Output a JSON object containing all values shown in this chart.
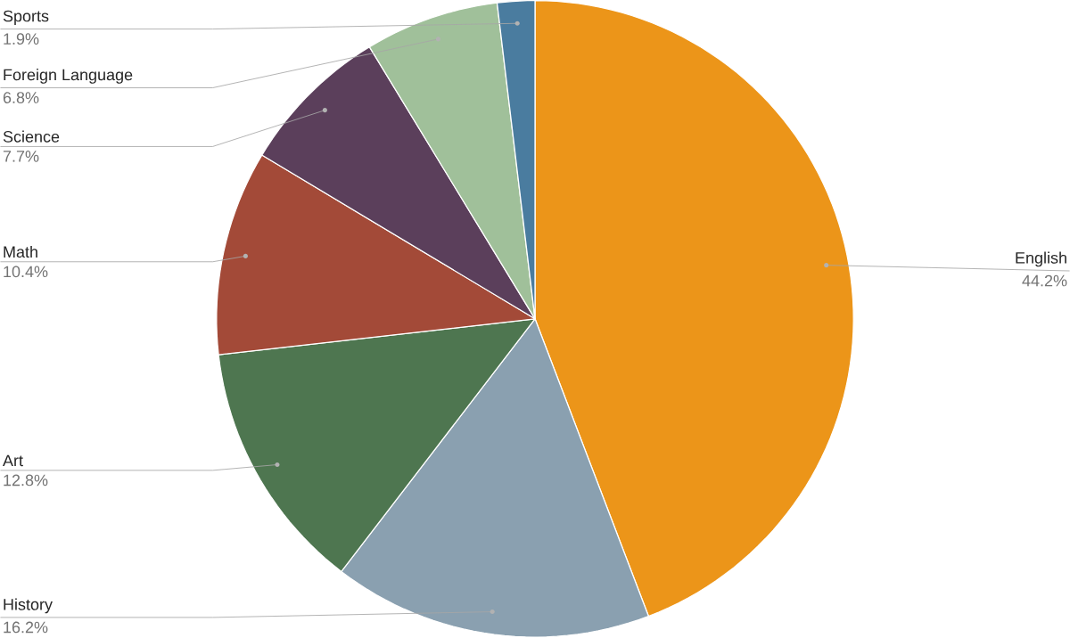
{
  "chart_data": {
    "type": "pie",
    "categories": [
      "English",
      "History",
      "Art",
      "Math",
      "Science",
      "Foreign Language",
      "Sports"
    ],
    "values": [
      44.2,
      16.2,
      12.8,
      10.4,
      7.7,
      6.8,
      1.9
    ],
    "value_labels": [
      "44.2%",
      "16.2%",
      "12.8%",
      "10.4%",
      "7.7%",
      "6.8%",
      "1.9%"
    ],
    "colors": [
      "#ec9519",
      "#8aa0b0",
      "#4e7650",
      "#a34a38",
      "#5b3f5b",
      "#a0c09a",
      "#4a7c9f"
    ]
  }
}
